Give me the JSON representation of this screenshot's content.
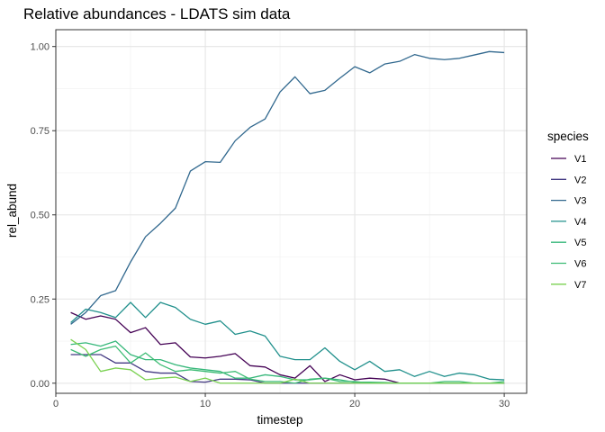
{
  "chart_data": {
    "type": "line",
    "title": "Relative abundances - LDATS sim data",
    "xlabel": "timestep",
    "ylabel": "rel_abund",
    "xlim": [
      0,
      31.5
    ],
    "ylim": [
      -0.03,
      1.05
    ],
    "x_ticks": [
      0,
      10,
      20,
      30
    ],
    "x_tick_labels": [
      "0",
      "10",
      "20",
      "30"
    ],
    "y_ticks": [
      0,
      0.25,
      0.5,
      0.75,
      1.0
    ],
    "y_tick_labels": [
      "0.00",
      "0.25",
      "0.50",
      "0.75",
      "1.00"
    ],
    "grid": true,
    "legend_title": "species",
    "legend_position": "right",
    "x": [
      1,
      2,
      3,
      4,
      5,
      6,
      7,
      8,
      9,
      10,
      11,
      12,
      13,
      14,
      15,
      16,
      17,
      18,
      19,
      20,
      21,
      22,
      23,
      24,
      25,
      26,
      27,
      28,
      29,
      30
    ],
    "series": [
      {
        "name": "V1",
        "color": "#440154",
        "values": [
          0.21,
          0.19,
          0.2,
          0.19,
          0.15,
          0.165,
          0.115,
          0.12,
          0.078,
          0.075,
          0.08,
          0.088,
          0.052,
          0.048,
          0.025,
          0.015,
          0.052,
          0.005,
          0.025,
          0.01,
          0.015,
          0.012,
          0.0,
          0.0,
          0.0,
          0.0,
          0.0,
          0.0,
          0.0,
          0.0
        ]
      },
      {
        "name": "V2",
        "color": "#443A83",
        "values": [
          0.085,
          0.085,
          0.085,
          0.06,
          0.06,
          0.035,
          0.03,
          0.03,
          0.005,
          0.003,
          0.012,
          0.012,
          0.01,
          0.0,
          0.0,
          0.0,
          0.0,
          0.0,
          0.0,
          0.0,
          0.0,
          0.0,
          0.0,
          0.0,
          0.0,
          0.0,
          0.0,
          0.0,
          0.0,
          0.0
        ]
      },
      {
        "name": "V3",
        "color": "#31688E",
        "values": [
          0.175,
          0.21,
          0.26,
          0.275,
          0.36,
          0.435,
          0.475,
          0.52,
          0.63,
          0.658,
          0.656,
          0.72,
          0.76,
          0.785,
          0.865,
          0.91,
          0.86,
          0.87,
          0.906,
          0.94,
          0.922,
          0.948,
          0.956,
          0.976,
          0.965,
          0.961,
          0.965,
          0.975,
          0.985,
          0.982
        ]
      },
      {
        "name": "V4",
        "color": "#21908C",
        "values": [
          0.18,
          0.22,
          0.21,
          0.195,
          0.24,
          0.195,
          0.24,
          0.225,
          0.19,
          0.175,
          0.185,
          0.145,
          0.155,
          0.14,
          0.08,
          0.07,
          0.07,
          0.105,
          0.065,
          0.04,
          0.065,
          0.035,
          0.04,
          0.02,
          0.035,
          0.02,
          0.03,
          0.025,
          0.012,
          0.01
        ]
      },
      {
        "name": "V5",
        "color": "#35B779",
        "values": [
          0.115,
          0.12,
          0.11,
          0.125,
          0.085,
          0.07,
          0.07,
          0.055,
          0.045,
          0.04,
          0.035,
          0.015,
          0.015,
          0.025,
          0.02,
          0.01,
          0.01,
          0.015,
          0.01,
          0.003,
          0.003,
          0.002,
          0.0,
          0.0,
          0.0,
          0.0,
          0.0,
          0.0,
          0.0,
          0.0
        ]
      },
      {
        "name": "V6",
        "color": "#3DBC74",
        "values": [
          0.1,
          0.08,
          0.1,
          0.11,
          0.06,
          0.09,
          0.055,
          0.035,
          0.04,
          0.035,
          0.03,
          0.035,
          0.012,
          0.005,
          0.005,
          0.0,
          0.012,
          0.015,
          0.005,
          0.005,
          0.0,
          0.0,
          0.0,
          0.0,
          0.0,
          0.005,
          0.005,
          0.0,
          0.0,
          0.005
        ]
      },
      {
        "name": "V7",
        "color": "#7AD151",
        "values": [
          0.13,
          0.1,
          0.035,
          0.045,
          0.04,
          0.01,
          0.015,
          0.018,
          0.005,
          0.015,
          0.0,
          0.0,
          0.0,
          0.0,
          0.0,
          0.012,
          0.0,
          0.0,
          0.0,
          0.0,
          0.0,
          0.0,
          0.0,
          0.0,
          0.0,
          0.0,
          0.0,
          0.0,
          0.0,
          0.0
        ]
      }
    ]
  }
}
